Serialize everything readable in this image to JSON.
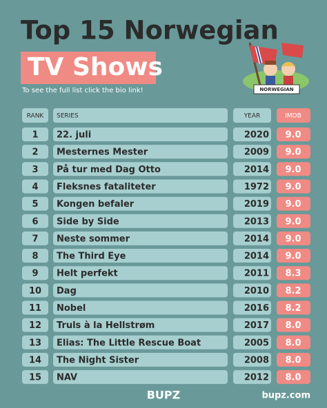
{
  "header": {
    "title": "Top 15 Norwegian",
    "highlight": "TV Shows",
    "subtitle": "To see the full list click the bio link!",
    "badge": "NORWEGIAN"
  },
  "table": {
    "columns": [
      "RANK",
      "SERIES",
      "YEAR",
      "IMDB"
    ],
    "rows": [
      [
        "1",
        "22. juli",
        "2020",
        "9.0"
      ],
      [
        "2",
        "Mesternes Mester",
        "2009",
        "9.0"
      ],
      [
        "3",
        "På tur med Dag Otto",
        "2014",
        "9.0"
      ],
      [
        "4",
        "Fleksnes fataliteter",
        "1972",
        "9.0"
      ],
      [
        "5",
        "Kongen befaler",
        "2019",
        "9.0"
      ],
      [
        "6",
        "Side by Side",
        "2013",
        "9.0"
      ],
      [
        "7",
        "Neste sommer",
        "2014",
        "9.0"
      ],
      [
        "8",
        "The Third Eye",
        "2014",
        "9.0"
      ],
      [
        "9",
        "Helt perfekt",
        "2011",
        "8.3"
      ],
      [
        "10",
        "Dag",
        "2010",
        "8.2"
      ],
      [
        "11",
        "Nobel",
        "2016",
        "8.2"
      ],
      [
        "12",
        "Truls à la Hellstrøm",
        "2017",
        "8.0"
      ],
      [
        "13",
        "Elias: The Little Rescue Boat",
        "2005",
        "8.0"
      ],
      [
        "14",
        "The Night Sister",
        "2008",
        "8.0"
      ],
      [
        "15",
        "NAV",
        "2012",
        "8.0"
      ]
    ]
  },
  "footer": {
    "brand": "BUPZ",
    "site": "bupz.com"
  }
}
